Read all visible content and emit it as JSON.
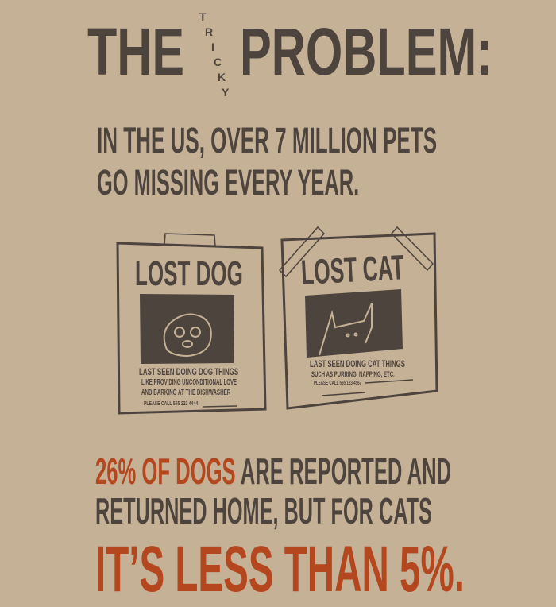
{
  "title": {
    "the": "THE",
    "tricky": [
      "T",
      "R",
      "I",
      "C",
      "K",
      "Y"
    ],
    "problem": "PROBLEM:"
  },
  "intro": {
    "line1": "IN THE US, OVER 7 MILLION PETS",
    "line2": "GO MISSING EVERY YEAR."
  },
  "posters": {
    "dog": {
      "heading": "LOST DOG",
      "line1": "LAST SEEN DOING DOG THINGS",
      "line2": "LIKE PROVIDING UNCONDITIONAL LOVE",
      "line3": "AND BARKING AT THE DISHWASHER",
      "phone": "PLEASE CALL 555 222 4444"
    },
    "cat": {
      "heading": "LOST CAT",
      "line1": "LAST SEEN DOING CAT THINGS",
      "line2": "SUCH AS PURRING, NAPPING, ETC.",
      "phone": "PLEASE CALL 555 123 4567"
    }
  },
  "stat": {
    "highlight": "26% OF DOGS",
    "line1_rest": " ARE REPORTED AND",
    "line2": "RETURNED HOME, BUT FOR CATS",
    "line3": "IT’S LESS THAN 5%."
  },
  "colors": {
    "background": "#c4b196",
    "text": "#4e443e",
    "accent": "#b5471f"
  }
}
